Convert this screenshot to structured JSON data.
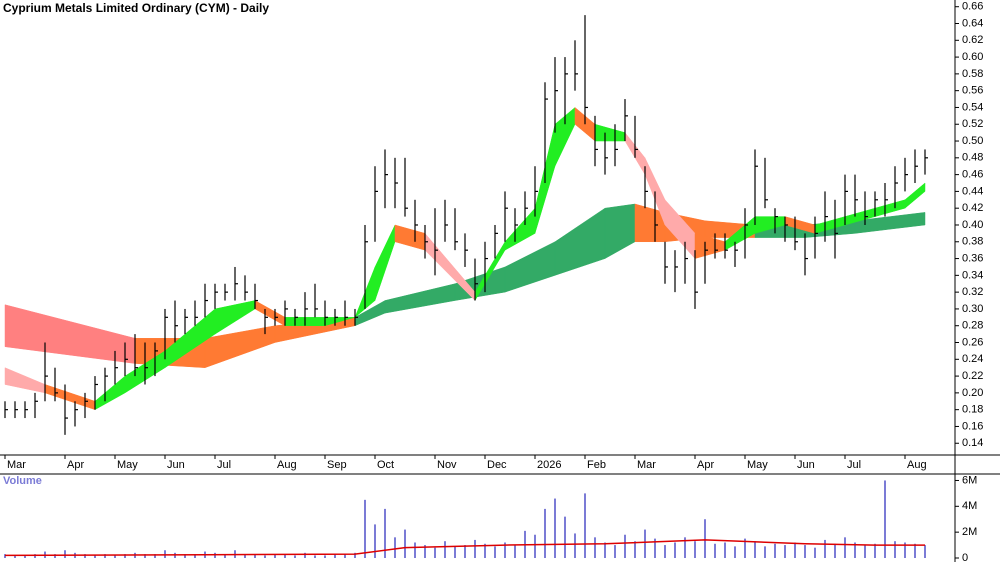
{
  "chart_data": [
    {
      "type": "ohlc",
      "title": "Cyprium Metals Limited Ordinary (CYM) - Daily",
      "color": "#000000",
      "categories": [
        "Mar",
        null,
        null,
        null,
        null,
        null,
        "Apr",
        null,
        null,
        null,
        null,
        "May",
        null,
        null,
        null,
        null,
        "Jun",
        null,
        null,
        null,
        null,
        "Jul",
        null,
        null,
        null,
        null,
        null,
        "Aug",
        null,
        null,
        null,
        null,
        "Sep",
        null,
        null,
        null,
        null,
        "Oct",
        null,
        null,
        null,
        null,
        null,
        "Nov",
        null,
        null,
        null,
        null,
        "Dec",
        null,
        null,
        null,
        null,
        "2026",
        null,
        null,
        null,
        null,
        "Feb",
        null,
        null,
        null,
        null,
        "Mar",
        null,
        null,
        null,
        null,
        null,
        "Apr",
        null,
        null,
        null,
        null,
        "May",
        null,
        null,
        null,
        null,
        "Jun",
        null,
        null,
        null,
        null,
        "Jul",
        null,
        null,
        null,
        null,
        null,
        "Aug",
        null,
        null
      ],
      "high": [
        0.19,
        0.19,
        0.19,
        0.2,
        0.26,
        0.23,
        0.21,
        0.19,
        0.2,
        0.22,
        0.23,
        0.25,
        0.26,
        0.27,
        0.26,
        0.26,
        0.3,
        0.31,
        0.3,
        0.31,
        0.33,
        0.33,
        0.33,
        0.35,
        0.34,
        0.33,
        0.3,
        0.3,
        0.31,
        0.3,
        0.32,
        0.33,
        0.31,
        0.3,
        0.31,
        0.3,
        0.4,
        0.47,
        0.49,
        0.48,
        0.48,
        0.43,
        0.4,
        0.42,
        0.43,
        0.42,
        0.39,
        0.36,
        0.38,
        0.4,
        0.44,
        0.42,
        0.44,
        0.47,
        0.57,
        0.6,
        0.6,
        0.62,
        0.65,
        0.53,
        0.51,
        0.52,
        0.55,
        0.53,
        0.47,
        0.44,
        0.38,
        0.37,
        0.38,
        0.37,
        0.38,
        0.39,
        0.39,
        0.38,
        0.42,
        0.49,
        0.48,
        0.42,
        0.41,
        0.41,
        0.39,
        0.41,
        0.44,
        0.43,
        0.46,
        0.46,
        0.44,
        0.44,
        0.45,
        0.47,
        0.48,
        0.49,
        0.49
      ],
      "low": [
        0.17,
        0.17,
        0.17,
        0.17,
        0.19,
        0.19,
        0.15,
        0.16,
        0.17,
        0.18,
        0.19,
        0.21,
        0.22,
        0.22,
        0.21,
        0.22,
        0.24,
        0.26,
        0.27,
        0.28,
        0.29,
        0.3,
        0.31,
        0.31,
        0.31,
        0.3,
        0.27,
        0.28,
        0.28,
        0.28,
        0.28,
        0.29,
        0.28,
        0.28,
        0.28,
        0.28,
        0.3,
        0.38,
        0.42,
        0.42,
        0.41,
        0.38,
        0.36,
        0.34,
        0.38,
        0.37,
        0.35,
        0.31,
        0.32,
        0.36,
        0.38,
        0.38,
        0.4,
        0.41,
        0.45,
        0.51,
        0.52,
        0.56,
        0.52,
        0.47,
        0.46,
        0.47,
        0.5,
        0.48,
        0.42,
        0.38,
        0.33,
        0.32,
        0.33,
        0.3,
        0.33,
        0.36,
        0.36,
        0.35,
        0.36,
        0.4,
        0.42,
        0.39,
        0.38,
        0.37,
        0.34,
        0.36,
        0.38,
        0.36,
        0.4,
        0.41,
        0.4,
        0.41,
        0.41,
        0.42,
        0.44,
        0.45,
        0.46
      ],
      "close": [
        0.18,
        0.18,
        0.18,
        0.19,
        0.22,
        0.2,
        0.17,
        0.18,
        0.19,
        0.21,
        0.22,
        0.23,
        0.24,
        0.23,
        0.23,
        0.25,
        0.29,
        0.28,
        0.29,
        0.29,
        0.31,
        0.32,
        0.32,
        0.33,
        0.32,
        0.31,
        0.29,
        0.29,
        0.3,
        0.29,
        0.3,
        0.3,
        0.29,
        0.29,
        0.29,
        0.29,
        0.38,
        0.44,
        0.46,
        0.45,
        0.42,
        0.4,
        0.38,
        0.37,
        0.4,
        0.38,
        0.37,
        0.33,
        0.36,
        0.39,
        0.42,
        0.4,
        0.42,
        0.44,
        0.55,
        0.56,
        0.58,
        0.58,
        0.54,
        0.49,
        0.48,
        0.49,
        0.53,
        0.49,
        0.44,
        0.4,
        0.35,
        0.35,
        0.36,
        0.32,
        0.37,
        0.37,
        0.37,
        0.37,
        0.4,
        0.47,
        0.43,
        0.41,
        0.4,
        0.38,
        0.36,
        0.39,
        0.41,
        0.39,
        0.44,
        0.43,
        0.41,
        0.43,
        0.43,
        0.45,
        0.46,
        0.47,
        0.48
      ],
      "ribbons": [
        {
          "x": [
            0,
            13,
            20,
            27,
            35,
            38,
            45,
            50,
            55,
            60,
            63,
            66,
            70,
            75,
            80,
            85,
            92
          ],
          "upper": [
            0.305,
            0.265,
            0.265,
            0.28,
            0.29,
            0.31,
            0.33,
            0.35,
            0.38,
            0.42,
            0.425,
            0.415,
            0.405,
            0.4,
            0.4,
            0.405,
            0.415
          ],
          "lower": [
            0.255,
            0.235,
            0.23,
            0.26,
            0.28,
            0.295,
            0.31,
            0.32,
            0.34,
            0.36,
            0.38,
            0.38,
            0.385,
            0.385,
            0.385,
            0.39,
            0.4
          ],
          "colors": [
            "#ff8080",
            "#ff7a33",
            "#ff7a33",
            "#ff7a33",
            "#33aa66",
            "#33aa66",
            "#33aa66",
            "#33aa66",
            "#33aa66",
            "#33aa66",
            "#ff7a33",
            "#ff7a33",
            "#ff7a33",
            "#33aa66",
            "#33aa66",
            "#33aa66"
          ]
        },
        {
          "x": [
            0,
            4,
            9,
            12,
            16,
            21,
            25,
            28,
            32,
            35,
            37,
            39,
            42,
            47,
            50,
            53,
            55,
            57,
            59,
            62,
            64,
            66,
            69,
            72,
            75,
            78,
            81,
            84,
            87,
            90,
            92
          ],
          "upper": [
            0.23,
            0.21,
            0.19,
            0.22,
            0.25,
            0.3,
            0.31,
            0.29,
            0.29,
            0.29,
            0.35,
            0.4,
            0.39,
            0.32,
            0.38,
            0.42,
            0.52,
            0.54,
            0.52,
            0.51,
            0.48,
            0.43,
            0.39,
            0.38,
            0.41,
            0.41,
            0.4,
            0.41,
            0.42,
            0.43,
            0.45
          ],
          "lower": [
            0.21,
            0.2,
            0.18,
            0.2,
            0.23,
            0.27,
            0.3,
            0.28,
            0.28,
            0.29,
            0.31,
            0.38,
            0.37,
            0.31,
            0.37,
            0.39,
            0.47,
            0.52,
            0.5,
            0.5,
            0.46,
            0.4,
            0.36,
            0.37,
            0.39,
            0.4,
            0.39,
            0.4,
            0.41,
            0.42,
            0.44
          ],
          "colors": [
            "#ffaaaa",
            "#ff7a33",
            "#22ee22",
            "#22ee22",
            "#22ee22",
            "#22ee22",
            "#ff7a33",
            "#22ee22",
            "#22ee22",
            "#22ee22",
            "#22ee22",
            "#ff7a33",
            "#ffaaaa",
            "#22ee22",
            "#22ee22",
            "#22ee22",
            "#22ee22",
            "#ff7a33",
            "#22ee22",
            "#ffaaaa",
            "#ffaaaa",
            "#ffaaaa",
            "#ff7a33",
            "#22ee22",
            "#22ee22",
            "#ff7a33",
            "#22ee22",
            "#22ee22",
            "#22ee22",
            "#22ee22"
          ]
        }
      ],
      "ylim": [
        0.126,
        0.668
      ],
      "yticks": [
        0.14,
        0.16,
        0.18,
        {
          "value": 0.2,
          "label": "0.20"
        },
        0.22,
        0.24,
        0.26,
        0.28,
        {
          "value": 0.3,
          "label": "0.30"
        },
        0.32,
        0.34,
        0.36,
        0.38,
        {
          "value": 0.4,
          "label": "0.40"
        },
        0.42,
        0.44,
        0.46,
        0.48,
        {
          "value": 0.5,
          "label": "0.50"
        },
        0.52,
        0.54,
        0.56,
        0.58,
        {
          "value": 0.6,
          "label": "0.60"
        },
        0.62,
        0.64,
        0.66
      ]
    },
    {
      "type": "bar",
      "title": "Volume",
      "color": "#7b7bd6",
      "values": [
        300000,
        200000,
        200000,
        300000,
        500000,
        300000,
        600000,
        400000,
        300000,
        200000,
        300000,
        200000,
        300000,
        400000,
        300000,
        300000,
        600000,
        400000,
        300000,
        300000,
        500000,
        400000,
        300000,
        600000,
        300000,
        300000,
        200000,
        300000,
        300000,
        200000,
        400000,
        200000,
        200000,
        300000,
        300000,
        400000,
        4500000,
        2600000,
        3800000,
        1600000,
        2200000,
        1200000,
        1000000,
        800000,
        1300000,
        900000,
        1000000,
        1400000,
        1100000,
        900000,
        1200000,
        1000000,
        2100000,
        1800000,
        3800000,
        4600000,
        3200000,
        1900000,
        5000000,
        1600000,
        1200000,
        1000000,
        1800000,
        1300000,
        2200000,
        1500000,
        1000000,
        1200000,
        1600000,
        1300000,
        3000000,
        1100000,
        1200000,
        900000,
        1500000,
        1300000,
        900000,
        1100000,
        1000000,
        1200000,
        1000000,
        800000,
        1400000,
        1100000,
        1600000,
        1200000,
        1000000,
        1100000,
        6000000,
        1300000,
        1200000,
        1100000,
        1000000
      ],
      "ma": {
        "color": "#dd0000",
        "x": [
          0,
          20,
          35,
          40,
          50,
          60,
          70,
          80,
          87,
          92
        ],
        "values": [
          200000,
          250000,
          300000,
          800000,
          1000000,
          1100000,
          1400000,
          1100000,
          1000000,
          1000000
        ]
      },
      "ylim": [
        0,
        6500000
      ],
      "yticks": [
        0,
        {
          "value": 2000000,
          "label": "2M"
        },
        {
          "value": 4000000,
          "label": "4M"
        },
        {
          "value": 6000000,
          "label": "6M"
        }
      ]
    }
  ]
}
